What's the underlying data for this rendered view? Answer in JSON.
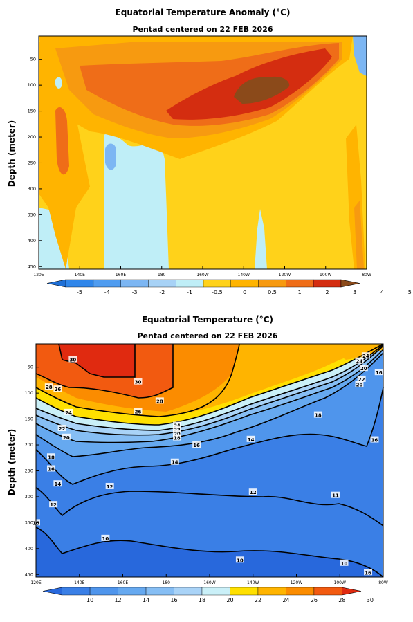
{
  "chart_data": [
    {
      "type": "heatmap",
      "title": "Equatorial Temperature Anomaly (°C)",
      "subtitle": "Pentad centered on 22 FEB 2026",
      "ylabel": "Depth (meter)",
      "xlabel": "",
      "x_ticks": [
        "120E",
        "140E",
        "160E",
        "180",
        "160W",
        "140W",
        "120W",
        "100W",
        "80W"
      ],
      "x_tick_lon": [
        120,
        140,
        160,
        180,
        200,
        220,
        240,
        260,
        280
      ],
      "xlim": [
        120,
        280
      ],
      "y_ticks": [
        50,
        100,
        150,
        200,
        250,
        300,
        350,
        400,
        450
      ],
      "ylim": [
        5,
        455
      ],
      "y_inverted": true,
      "colorbar_ticks": [
        "-5",
        "-4",
        "-3",
        "-2",
        "-1",
        "-0.5",
        "0",
        "0.5",
        "1",
        "2",
        "3",
        "4",
        "5"
      ],
      "colorbar_colors": [
        "#1e6fd6",
        "#2f86ea",
        "#4f9cf0",
        "#7cb6f3",
        "#a7d2f6",
        "#bfeef7",
        "#ffd21a",
        "#ffb400",
        "#f79a10",
        "#ef6d18",
        "#d42d10",
        "#8b4a1a"
      ],
      "levels": [
        -5,
        -4,
        -3,
        -2,
        -1,
        -0.5,
        0,
        0.5,
        1,
        2,
        3,
        4,
        5
      ],
      "grid": false
    },
    {
      "type": "heatmap",
      "title": "Equatorial Temperature (°C)",
      "subtitle": "Pentad centered on 22 FEB 2026",
      "subtitle_color": "#2a30e0",
      "ylabel": "Depth (meter)",
      "xlabel": "",
      "x_ticks": [
        "120E",
        "140E",
        "160E",
        "180",
        "160W",
        "140W",
        "120W",
        "100W",
        "80W"
      ],
      "x_tick_lon": [
        120,
        140,
        160,
        180,
        200,
        220,
        240,
        260,
        280
      ],
      "xlim": [
        120,
        280
      ],
      "y_ticks": [
        50,
        100,
        150,
        200,
        250,
        300,
        350,
        400,
        450
      ],
      "ylim": [
        5,
        455
      ],
      "y_inverted": true,
      "colorbar_ticks": [
        "10",
        "12",
        "14",
        "16",
        "18",
        "20",
        "22",
        "24",
        "26",
        "28",
        "30"
      ],
      "colorbar_colors": [
        "#2868dc",
        "#3a7fe6",
        "#4f95ec",
        "#66a9f0",
        "#86bef4",
        "#a9d3f7",
        "#caf0f8",
        "#ffe000",
        "#ffb400",
        "#fb8c00",
        "#f25a10",
        "#e02a10"
      ],
      "contour_labels": [
        {
          "text": "30",
          "lon": 137,
          "depth": 35
        },
        {
          "text": "30",
          "lon": 167,
          "depth": 78
        },
        {
          "text": "28",
          "lon": 126,
          "depth": 88
        },
        {
          "text": "26",
          "lon": 130,
          "depth": 92
        },
        {
          "text": "28",
          "lon": 177,
          "depth": 115
        },
        {
          "text": "26",
          "lon": 167,
          "depth": 135
        },
        {
          "text": "24",
          "lon": 135,
          "depth": 137
        },
        {
          "text": "22",
          "lon": 132,
          "depth": 168
        },
        {
          "text": "20",
          "lon": 134,
          "depth": 185
        },
        {
          "text": "24",
          "lon": 185,
          "depth": 162
        },
        {
          "text": "22",
          "lon": 185,
          "depth": 170
        },
        {
          "text": "20",
          "lon": 185,
          "depth": 178
        },
        {
          "text": "18",
          "lon": 185,
          "depth": 186
        },
        {
          "text": "16",
          "lon": 194,
          "depth": 200
        },
        {
          "text": "18",
          "lon": 127,
          "depth": 223
        },
        {
          "text": "16",
          "lon": 127,
          "depth": 246
        },
        {
          "text": "14",
          "lon": 184,
          "depth": 233
        },
        {
          "text": "14",
          "lon": 219,
          "depth": 189
        },
        {
          "text": "14",
          "lon": 130,
          "depth": 275
        },
        {
          "text": "12",
          "lon": 154,
          "depth": 280
        },
        {
          "text": "12",
          "lon": 220,
          "depth": 291
        },
        {
          "text": "11",
          "lon": 258,
          "depth": 297
        },
        {
          "text": "12",
          "lon": 128,
          "depth": 315
        },
        {
          "text": "16",
          "lon": 120,
          "depth": 350
        },
        {
          "text": "10",
          "lon": 152,
          "depth": 380
        },
        {
          "text": "10",
          "lon": 214,
          "depth": 422
        },
        {
          "text": "10",
          "lon": 262,
          "depth": 428
        },
        {
          "text": "18",
          "lon": 250,
          "depth": 142
        },
        {
          "text": "16",
          "lon": 276,
          "depth": 190
        },
        {
          "text": "20",
          "lon": 269,
          "depth": 83
        },
        {
          "text": "22",
          "lon": 270,
          "depth": 73
        },
        {
          "text": "24",
          "lon": 269,
          "depth": 38
        },
        {
          "text": "24",
          "lon": 272,
          "depth": 28
        },
        {
          "text": "20",
          "lon": 271,
          "depth": 52
        },
        {
          "text": "16",
          "lon": 278,
          "depth": 60
        },
        {
          "text": "16",
          "lon": 273,
          "depth": 446
        }
      ],
      "levels": [
        10,
        12,
        14,
        16,
        18,
        20,
        22,
        24,
        26,
        28,
        30
      ],
      "grid": false
    }
  ]
}
